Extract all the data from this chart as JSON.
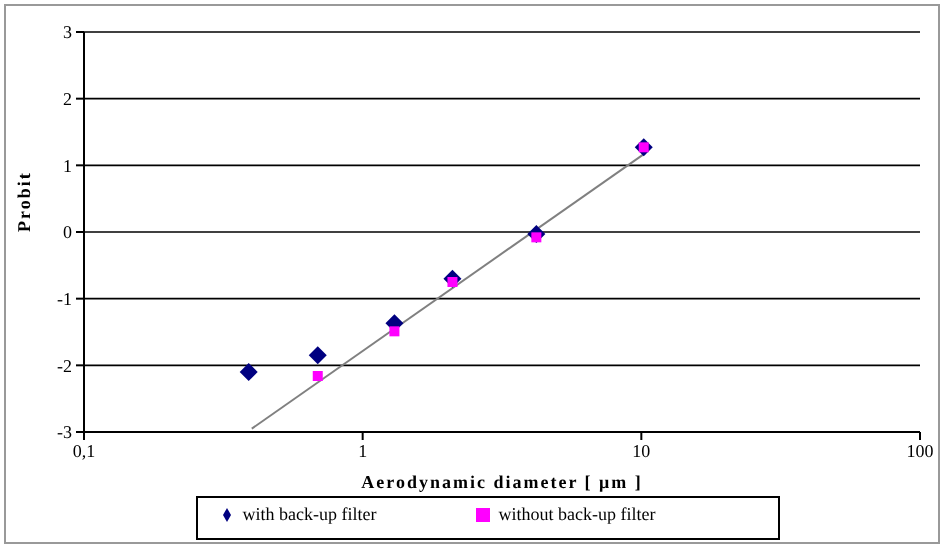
{
  "chart_data": {
    "type": "scatter",
    "xlabel": "Aerodynamic diameter [ μm ]",
    "ylabel": "Probit",
    "log": "x",
    "xlim": [
      0.1,
      100
    ],
    "xticks": [
      {
        "value": 0.1,
        "label": "0,1"
      },
      1,
      10,
      100
    ],
    "ylim": [
      -3,
      3
    ],
    "yticks": [
      -3,
      -2,
      -1,
      0,
      1,
      2,
      3
    ],
    "grid": "y",
    "legend": "bottom",
    "series": [
      {
        "name": "with back-up filter",
        "color": "#000080",
        "marker": "diamond",
        "x": [
          0.39,
          0.69,
          1.3,
          2.1,
          4.2,
          10.2
        ],
        "values": [
          -2.1,
          -1.85,
          -1.37,
          -0.7,
          -0.03,
          1.27
        ]
      },
      {
        "name": "without back-up filter",
        "color": "#ff00ff",
        "marker": "square",
        "x": [
          0.69,
          1.3,
          2.1,
          4.2,
          10.2
        ],
        "values": [
          -2.16,
          -1.49,
          -0.75,
          -0.08,
          1.27
        ]
      },
      {
        "type": "line",
        "color": "#808080",
        "marker": "none",
        "x": [
          0.4,
          10.3
        ],
        "values": [
          -2.95,
          1.18
        ]
      }
    ]
  }
}
